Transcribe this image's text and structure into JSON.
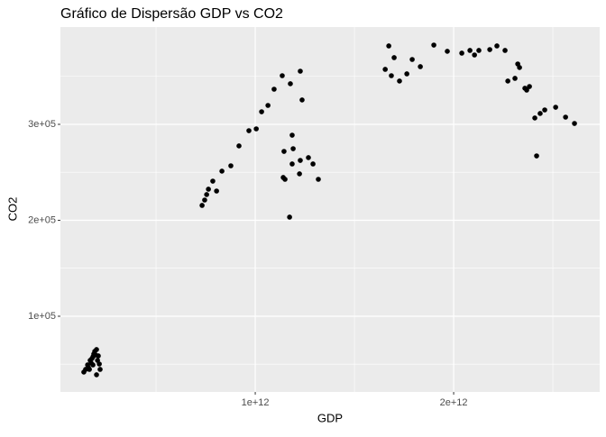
{
  "chart_data": {
    "type": "scatter",
    "title": "Gráfico de Dispersão GDP vs CO2",
    "x_label": "GDP",
    "y_label": "CO2",
    "color": "#000000",
    "grid": true,
    "xlim": [
      18000000000.0,
      2736000000000.0
    ],
    "ylim": [
      21100,
      401400
    ],
    "xticks": [
      {
        "value": 1000000000000.0,
        "label": "1e+12"
      },
      {
        "value": 2000000000000.0,
        "label": "2e+12"
      }
    ],
    "x_minor_ticks": [
      500000000000.0,
      1500000000000.0,
      2500000000000.0
    ],
    "yticks": [
      {
        "value": 100000,
        "label": "1e+05"
      },
      {
        "value": 200000,
        "label": "2e+05"
      },
      {
        "value": 300000,
        "label": "3e+05"
      }
    ],
    "y_minor_ticks": [
      50000,
      150000,
      250000,
      350000
    ],
    "x": [
      136000000000.0,
      145000000000.0,
      155000000000.0,
      159000000000.0,
      168000000000.0,
      173000000000.0,
      177000000000.0,
      182000000000.0,
      186000000000.0,
      191000000000.0,
      195000000000.0,
      200000000000.0,
      205000000000.0,
      209000000000.0,
      214000000000.0,
      200000000000.0,
      218000000000.0,
      164000000000.0,
      182000000000.0,
      732000000000.0,
      745000000000.0,
      755000000000.0,
      764000000000.0,
      786000000000.0,
      805000000000.0,
      832000000000.0,
      877000000000.0,
      918000000000.0,
      968000000000.0,
      1005000000000.0,
      1032000000000.0,
      1064000000000.0,
      1095000000000.0,
      1136000000000.0,
      1177000000000.0,
      1227000000000.0,
      1236000000000.0,
      1186000000000.0,
      1191000000000.0,
      1145000000000.0,
      1186000000000.0,
      1141000000000.0,
      1150000000000.0,
      1227000000000.0,
      1268000000000.0,
      1291000000000.0,
      1318000000000.0,
      1173000000000.0,
      1223000000000.0,
      1655000000000.0,
      1673000000000.0,
      1686000000000.0,
      1700000000000.0,
      1727000000000.0,
      1764000000000.0,
      1791000000000.0,
      1832000000000.0,
      1900000000000.0,
      1968000000000.0,
      2041000000000.0,
      2082000000000.0,
      2105000000000.0,
      2127000000000.0,
      2182000000000.0,
      2218000000000.0,
      2259000000000.0,
      2273000000000.0,
      2309000000000.0,
      2323000000000.0,
      2332000000000.0,
      2359000000000.0,
      2368000000000.0,
      2382000000000.0,
      2409000000000.0,
      2418000000000.0,
      2436000000000.0,
      2459000000000.0,
      2514000000000.0,
      2564000000000.0,
      2609000000000.0
    ],
    "values": [
      41800,
      44600,
      49300,
      46500,
      54000,
      51200,
      55900,
      57700,
      60600,
      63400,
      59600,
      65300,
      54000,
      58700,
      50200,
      39000,
      44600,
      44600,
      49300,
      215500,
      221100,
      226800,
      232400,
      240800,
      230500,
      251200,
      256800,
      277500,
      293400,
      295300,
      313100,
      319700,
      336600,
      350700,
      342300,
      355400,
      325400,
      288700,
      274600,
      271800,
      258700,
      244600,
      242700,
      262400,
      265300,
      258700,
      242700,
      203300,
      248400,
      357300,
      381700,
      350700,
      369500,
      345100,
      352600,
      367600,
      360100,
      382600,
      376100,
      374200,
      377000,
      372300,
      377000,
      377900,
      381700,
      377000,
      345100,
      347900,
      362900,
      359200,
      337600,
      335700,
      339400,
      306600,
      267100,
      311300,
      315000,
      317800,
      307500,
      300900
    ]
  }
}
